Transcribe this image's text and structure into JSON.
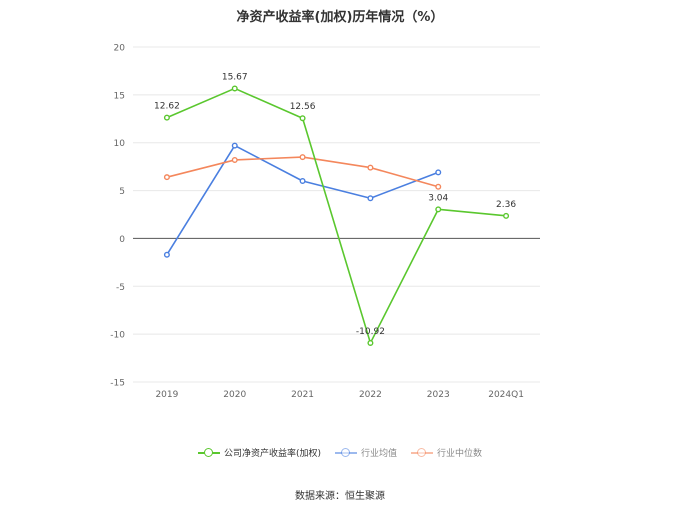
{
  "title": "净资产收益率(加权)历年情况（%）",
  "source_text": "数据来源：恒生聚源",
  "chart_data": {
    "type": "line",
    "categories": [
      "2019",
      "2020",
      "2021",
      "2022",
      "2023",
      "2024Q1"
    ],
    "ylim": [
      -15,
      20
    ],
    "yticks": [
      20,
      15,
      10,
      5,
      0,
      -5,
      -10,
      -15
    ],
    "grid": true,
    "legend_position": "bottom",
    "series": [
      {
        "name": "公司净资产收益率(加权)",
        "color": "#5ac72e",
        "values": [
          12.62,
          15.67,
          12.56,
          -10.92,
          3.04,
          2.36
        ],
        "labels": [
          "12.62",
          "15.67",
          "12.56",
          "-10.92",
          "3.04",
          "2.36"
        ]
      },
      {
        "name": "行业均值",
        "color": "#4a7fe0",
        "values": [
          -1.7,
          9.7,
          6.0,
          4.2,
          6.9,
          null
        ]
      },
      {
        "name": "行业中位数",
        "color": "#f4875c",
        "values": [
          6.4,
          8.2,
          8.5,
          7.4,
          5.4,
          null
        ]
      }
    ]
  }
}
